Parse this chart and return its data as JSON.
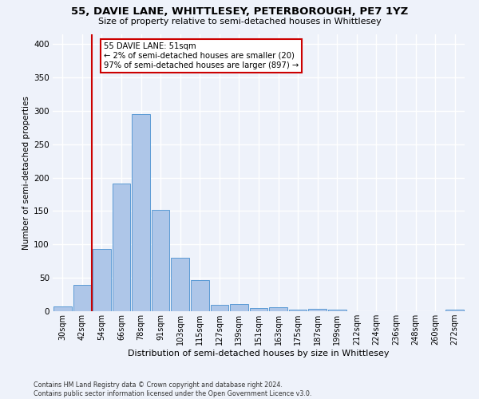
{
  "title1": "55, DAVIE LANE, WHITTLESEY, PETERBOROUGH, PE7 1YZ",
  "title2": "Size of property relative to semi-detached houses in Whittlesey",
  "xlabel": "Distribution of semi-detached houses by size in Whittlesey",
  "ylabel": "Number of semi-detached properties",
  "categories": [
    "30sqm",
    "42sqm",
    "54sqm",
    "66sqm",
    "78sqm",
    "91sqm",
    "103sqm",
    "115sqm",
    "127sqm",
    "139sqm",
    "151sqm",
    "163sqm",
    "175sqm",
    "187sqm",
    "199sqm",
    "212sqm",
    "224sqm",
    "236sqm",
    "248sqm",
    "260sqm",
    "272sqm"
  ],
  "values": [
    7,
    40,
    93,
    191,
    295,
    152,
    80,
    46,
    9,
    11,
    5,
    6,
    2,
    3,
    2,
    0,
    0,
    0,
    0,
    0,
    2
  ],
  "bar_color": "#aec6e8",
  "bar_edge_color": "#5b9bd5",
  "vline_color": "#cc0000",
  "annotation_text": "55 DAVIE LANE: 51sqm\n← 2% of semi-detached houses are smaller (20)\n97% of semi-detached houses are larger (897) →",
  "annotation_box_color": "#ffffff",
  "annotation_box_edge": "#cc0000",
  "background_color": "#eef2fa",
  "plot_bg_color": "#eef2fa",
  "grid_color": "#ffffff",
  "ylim": [
    0,
    415
  ],
  "footnote": "Contains HM Land Registry data © Crown copyright and database right 2024.\nContains public sector information licensed under the Open Government Licence v3.0."
}
